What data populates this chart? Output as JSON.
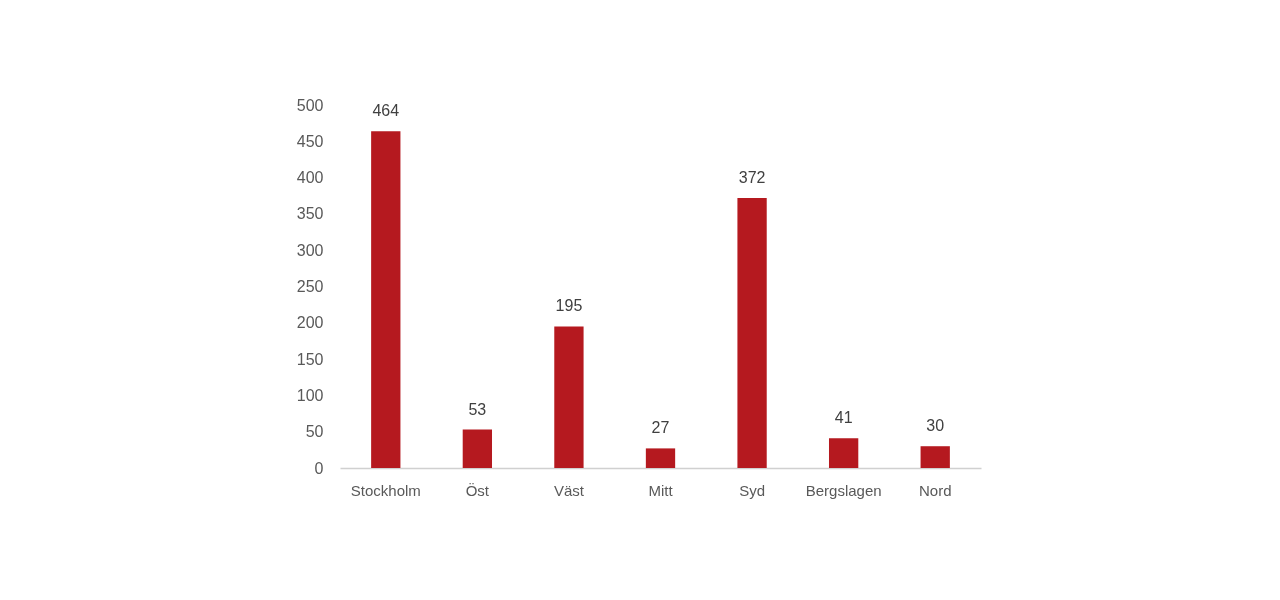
{
  "chart_data": {
    "type": "bar",
    "categories": [
      "Stockholm",
      "Öst",
      "Väst",
      "Mitt",
      "Syd",
      "Bergslagen",
      "Nord"
    ],
    "values": [
      464,
      53,
      195,
      27,
      372,
      41,
      30
    ],
    "color": "#b5191f",
    "ylim": [
      0,
      500
    ],
    "yticks": [
      0,
      50,
      100,
      150,
      200,
      250,
      300,
      350,
      400,
      450,
      500
    ],
    "data_labels": true
  }
}
